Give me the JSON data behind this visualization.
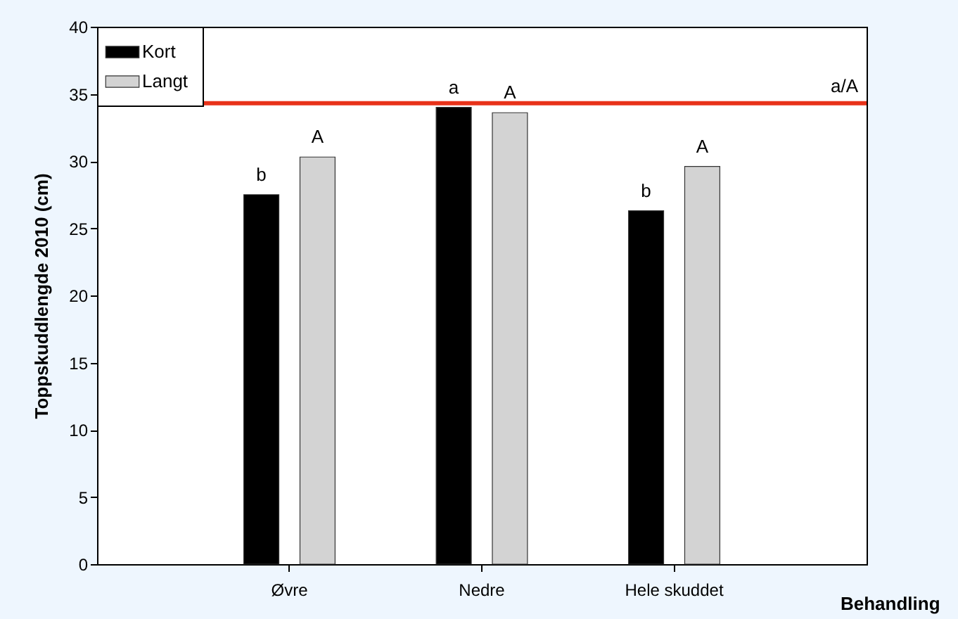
{
  "chart_data": {
    "type": "bar",
    "ylabel": "Toppskuddlengde 2010 (cm)",
    "xlabel": "Behandling",
    "categories": [
      "Øvre",
      "Nedre",
      "Hele skuddet"
    ],
    "series": [
      {
        "name": "Kort",
        "color": "#000000",
        "values": [
          27.5,
          34.0,
          26.3
        ],
        "value_labels": [
          "b",
          "a",
          "b"
        ]
      },
      {
        "name": "Langt",
        "color": "#d3d3d3",
        "values": [
          30.3,
          33.6,
          29.6
        ],
        "value_labels": [
          "A",
          "A",
          "A"
        ]
      }
    ],
    "ylim": [
      0,
      40
    ],
    "yticks": [
      0,
      5,
      10,
      15,
      20,
      25,
      30,
      35,
      40
    ],
    "grid": false,
    "legend": "top left",
    "ref_lines": [
      {
        "axis": "y",
        "value": 34.3,
        "label": "a/A",
        "color": "#e8321a"
      }
    ]
  }
}
